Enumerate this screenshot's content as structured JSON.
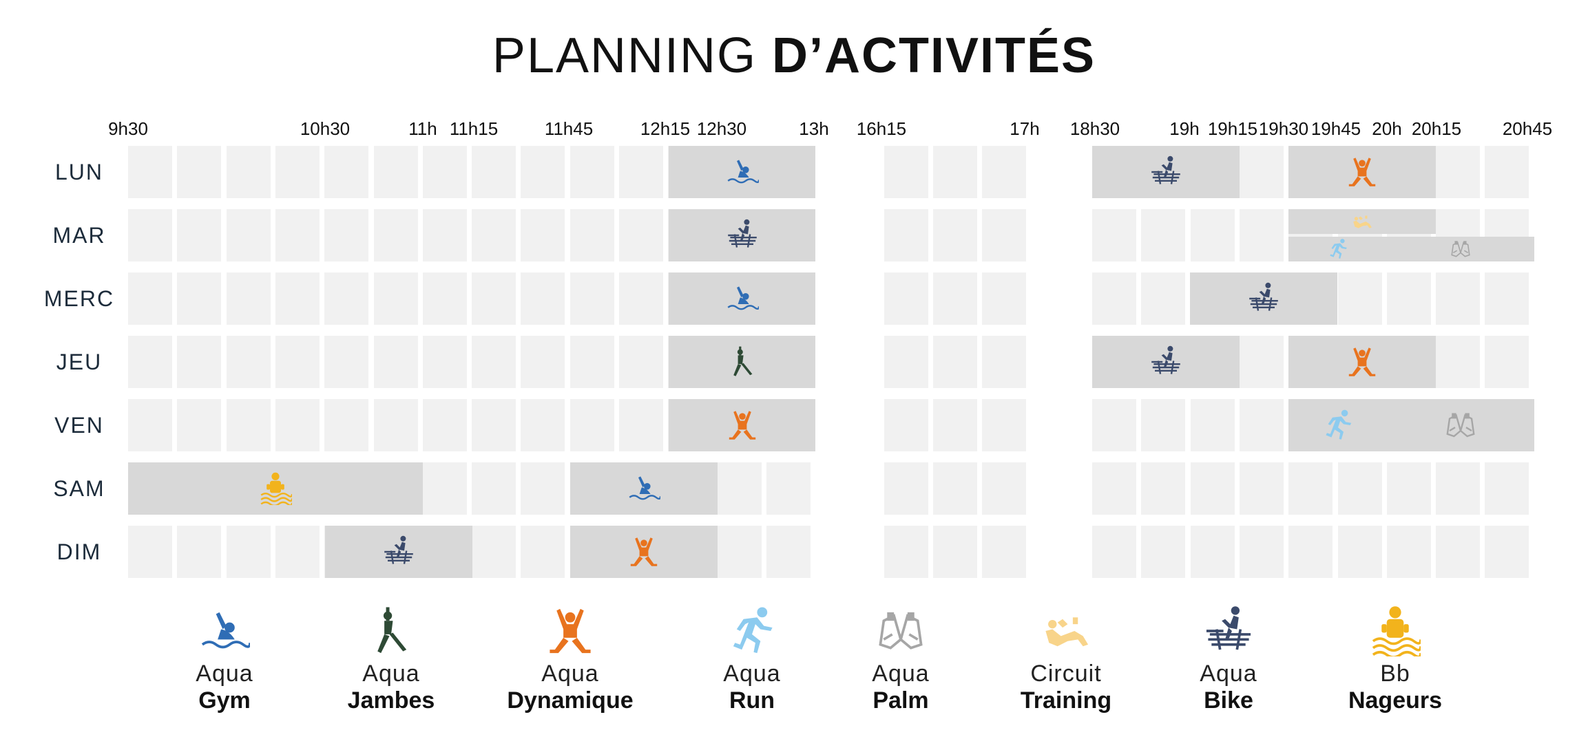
{
  "title": {
    "light": "PLANNING",
    "bold": "D’ACTIVITÉS"
  },
  "times": [
    "9h30",
    "10h30",
    "11h",
    "11h15",
    "11h45",
    "12h15",
    "12h30",
    "13h",
    "16h15",
    "17h",
    "18h30",
    "19h",
    "19h15",
    "19h30",
    "19h45",
    "20h",
    "20h15",
    "20h45"
  ],
  "days": [
    "LUN",
    "MAR",
    "MERC",
    "JEU",
    "VEN",
    "SAM",
    "DIM"
  ],
  "activities": {
    "gym": {
      "line1": "Aqua",
      "line2": "Gym",
      "icon": "swimmer-wave-icon",
      "color": "#2f6db5"
    },
    "jambes": {
      "line1": "Aqua",
      "line2": "Jambes",
      "icon": "stretch-figure-icon",
      "color": "#2e4a35"
    },
    "dynamique": {
      "line1": "Aqua",
      "line2": "Dynamique",
      "icon": "jumping-figure-icon",
      "color": "#e8731e"
    },
    "run": {
      "line1": "Aqua",
      "line2": "Run",
      "icon": "runner-icon",
      "color": "#8ccbef"
    },
    "palm": {
      "line1": "Aqua",
      "line2": "Palm",
      "icon": "fins-icon",
      "color": "#a6a6a6"
    },
    "training": {
      "line1": "Circuit",
      "line2": "Training",
      "icon": "circuit-figure-icon",
      "color": "#f8d48a"
    },
    "bike": {
      "line1": "Aqua",
      "line2": "Bike",
      "icon": "bike-figure-icon",
      "color": "#3b4a6b"
    },
    "nageurs": {
      "line1": "Bb",
      "line2": "Nageurs",
      "icon": "baby-float-icon",
      "color": "#f2b31c"
    }
  },
  "legend_order": [
    "gym",
    "jambes",
    "dynamique",
    "run",
    "palm",
    "training",
    "bike",
    "nageurs"
  ],
  "schedule": [
    {
      "day": "LUN",
      "activity": "gym",
      "from": "12h30",
      "to": "13h"
    },
    {
      "day": "LUN",
      "activity": "bike",
      "from": "18h30",
      "to": "19h15"
    },
    {
      "day": "LUN",
      "activity": "dynamique",
      "from": "19h45",
      "to": "20h15"
    },
    {
      "day": "MAR",
      "activity": "bike",
      "from": "12h30",
      "to": "13h"
    },
    {
      "day": "MAR",
      "activity": "training",
      "from": "19h45",
      "to": "20h15"
    },
    {
      "day": "MAR",
      "activity": "run",
      "from": "19h45",
      "to": "20h"
    },
    {
      "day": "MAR",
      "activity": "palm",
      "from": "20h",
      "to": "20h45"
    },
    {
      "day": "MERC",
      "activity": "gym",
      "from": "12h30",
      "to": "13h"
    },
    {
      "day": "MERC",
      "activity": "bike",
      "from": "19h",
      "to": "19h45"
    },
    {
      "day": "JEU",
      "activity": "jambes",
      "from": "12h30",
      "to": "13h"
    },
    {
      "day": "JEU",
      "activity": "bike",
      "from": "18h30",
      "to": "19h15"
    },
    {
      "day": "JEU",
      "activity": "dynamique",
      "from": "19h45",
      "to": "20h15"
    },
    {
      "day": "VEN",
      "activity": "dynamique",
      "from": "12h30",
      "to": "13h"
    },
    {
      "day": "VEN",
      "activity": "run",
      "from": "19h45",
      "to": "20h"
    },
    {
      "day": "VEN",
      "activity": "palm",
      "from": "20h",
      "to": "20h45"
    },
    {
      "day": "SAM",
      "activity": "nageurs",
      "from": "9h30",
      "to": "11h"
    },
    {
      "day": "SAM",
      "activity": "gym",
      "from": "11h45",
      "to": "12h30"
    },
    {
      "day": "DIM",
      "activity": "bike",
      "from": "10h30",
      "to": "11h15"
    },
    {
      "day": "DIM",
      "activity": "dynamique",
      "from": "11h45",
      "to": "12h30"
    }
  ]
}
